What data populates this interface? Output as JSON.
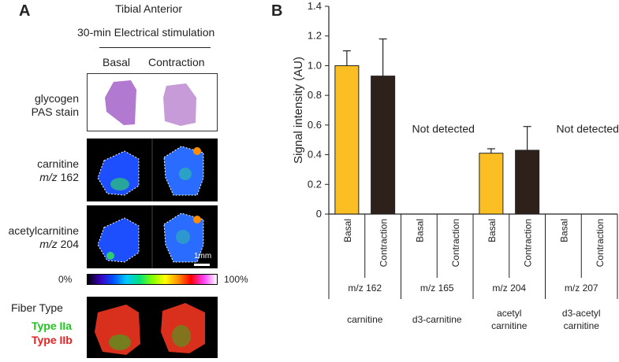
{
  "panel_a": {
    "letter": "A",
    "title": "Tibial Anterior",
    "subtitle": "30-min Electrical stimulation",
    "columns": [
      "Basal",
      "Contraction"
    ],
    "rows": [
      {
        "line1": "glycogen",
        "line2": "PAS stain"
      },
      {
        "line1": "carnitine",
        "line2_italic": "m/z",
        "line2_rest": " 162"
      },
      {
        "line1": "acetylcarnitine",
        "line2_italic": "m/z",
        "line2_rest": " 204"
      }
    ],
    "scale_bar": "1mm",
    "colorbar": {
      "min": "0%",
      "max": "100%"
    },
    "fiber": {
      "title": "Fiber Type",
      "type2a": "Type IIa",
      "type2b": "Type IIb",
      "type2a_color": "#22c322",
      "type2b_color": "#e52222"
    }
  },
  "panel_b": {
    "letter": "B"
  },
  "chart_data": {
    "type": "bar",
    "ylabel": "Signal intensity (AU)",
    "ylim": [
      0,
      1.4
    ],
    "yticks": [
      "0",
      "0.2",
      "0.4",
      "0.6",
      "0.8",
      "1.0",
      "1.2",
      "1.4"
    ],
    "conditions": [
      "Basal",
      "Contraction"
    ],
    "colors": {
      "Basal": "#fbbf24",
      "Contraction": "#2e211c"
    },
    "groups": [
      {
        "mz": "m/z 162",
        "name": "carnitine",
        "values": [
          1.0,
          0.93
        ],
        "errors": [
          0.1,
          0.25
        ],
        "detected": true
      },
      {
        "mz": "m/z 165",
        "name": "d3-carnitine",
        "values": null,
        "errors": null,
        "detected": false,
        "annotation": "Not detected"
      },
      {
        "mz": "m/z 204",
        "name": "acetyl\ncarnitine",
        "values": [
          0.41,
          0.43
        ],
        "errors": [
          0.03,
          0.16
        ],
        "detected": true
      },
      {
        "mz": "m/z 207",
        "name": "d3-acetyl\ncarnitine",
        "values": null,
        "errors": null,
        "detected": false,
        "annotation": "Not detected"
      }
    ]
  }
}
